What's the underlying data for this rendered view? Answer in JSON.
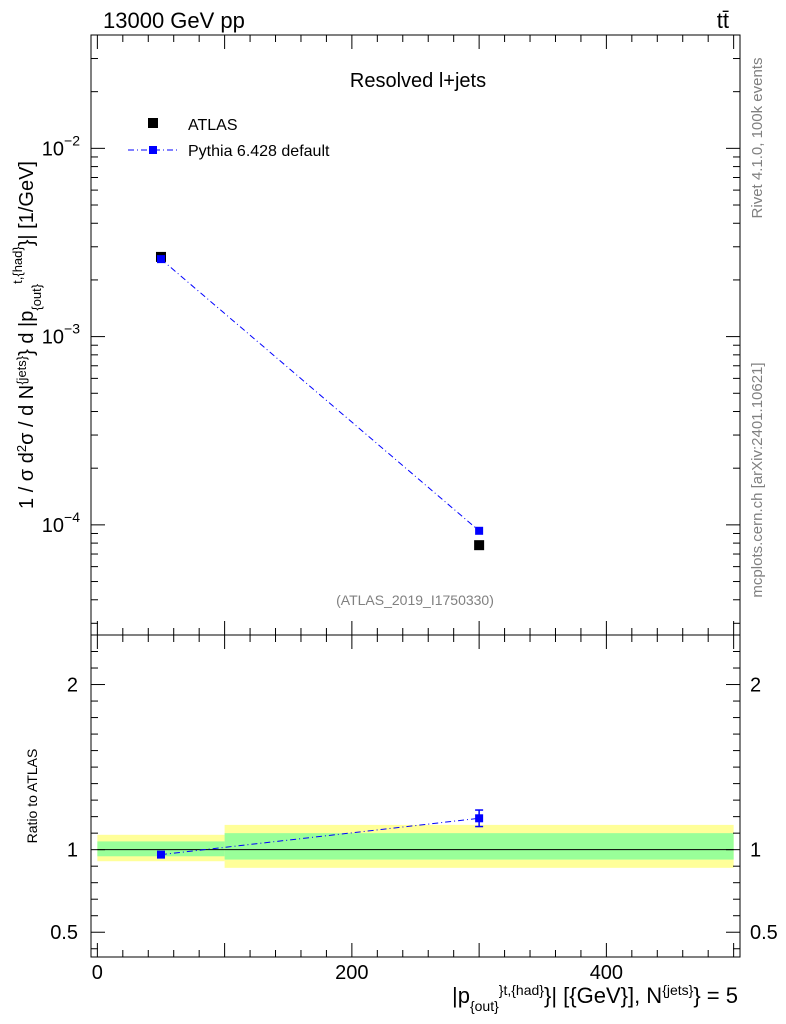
{
  "header": {
    "left": "13000 GeV pp",
    "right": "tt̄"
  },
  "chart_data": [
    {
      "type": "scatter",
      "title": "Resolved l+jets",
      "ylabel_parts": {
        "pre": "1 / σ d",
        "sq": "2",
        "mid": "σ / d N",
        "sup1": "{jets}",
        "mid2": "} d |p",
        "sub": "{out}",
        "sup2": "t,{had}",
        "post": "}| [1/GeV]"
      },
      "yscale": "log",
      "ylim": [
        2.6e-05,
        0.04
      ],
      "yticks": [
        {
          "value": 0.0001,
          "base": "10",
          "exp": "−4"
        },
        {
          "value": 0.001,
          "base": "10",
          "exp": "−3"
        },
        {
          "value": 0.01,
          "base": "10",
          "exp": "−2"
        }
      ],
      "xlim": [
        -5,
        505
      ],
      "series": [
        {
          "name": "ATLAS",
          "color": "#000000",
          "x": [
            50,
            300
          ],
          "y": [
            0.00265,
            7.8e-05
          ]
        },
        {
          "name": "Pythia 6.428 default",
          "color": "#0000ff",
          "x": [
            50,
            300
          ],
          "y": [
            0.00258,
            9.3e-05
          ]
        }
      ],
      "watermark": "(ATLAS_2019_I1750330)"
    },
    {
      "type": "scatter",
      "ylabel": "Ratio to ATLAS",
      "ylim": [
        0.35,
        2.3
      ],
      "yticks": [
        0.5,
        1,
        2
      ],
      "ytick_labels": [
        "0.5",
        "1",
        "2"
      ],
      "xlim": [
        -5,
        505
      ],
      "xticks": [
        0,
        200,
        400
      ],
      "xtick_labels": [
        "0",
        "200",
        "400"
      ],
      "xlabel_parts": {
        "pre": "|p",
        "sub": "{out}",
        "sup1": "}",
        "sup2": "t,{had}",
        "mid": "}| [{GeV}], N",
        "sup3": "{jets}",
        "post": "} = 5"
      },
      "bands": [
        {
          "x": [
            0,
            100
          ],
          "yellow": [
            0.93,
            1.09
          ],
          "green": [
            0.96,
            1.05
          ]
        },
        {
          "x": [
            100,
            500
          ],
          "yellow": [
            0.89,
            1.15
          ],
          "green": [
            0.94,
            1.1
          ]
        }
      ],
      "series": [
        {
          "name": "Pythia 6.428 default",
          "color": "#0000ff",
          "x": [
            50,
            300
          ],
          "y": [
            0.97,
            1.19
          ],
          "yerr": [
            0.0,
            0.05
          ]
        }
      ]
    }
  ],
  "side_labels": {
    "rivet": "Rivet 4.1.0,  100k events",
    "mcplots": "mcplots.cern.ch [arXiv:2401.10621]"
  }
}
